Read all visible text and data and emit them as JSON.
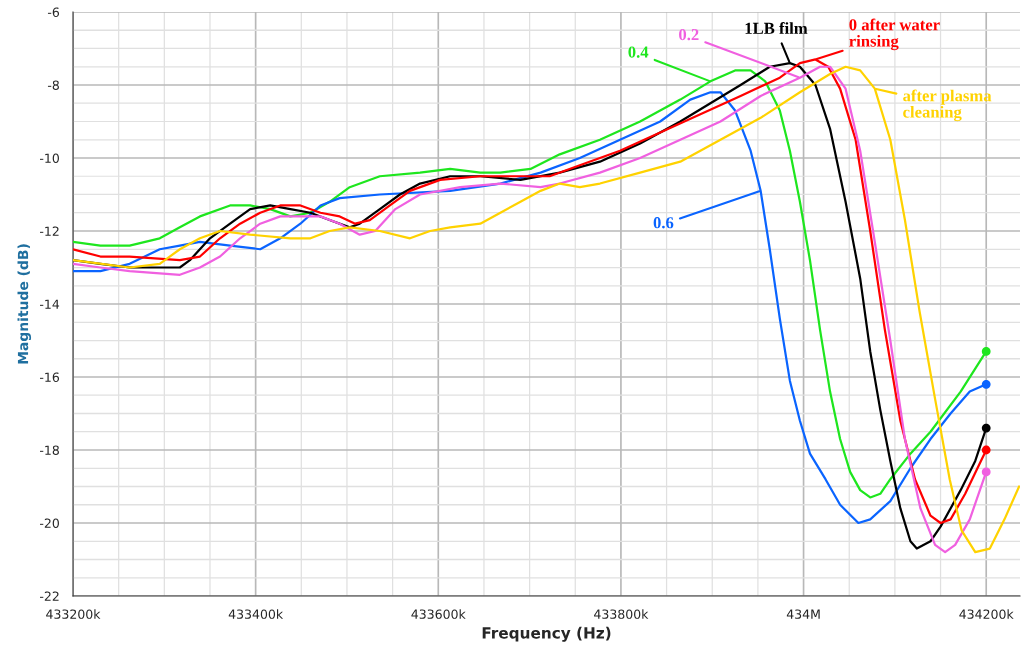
{
  "chart_data": {
    "type": "line",
    "xlabel": "Frequency (Hz)",
    "ylabel": "Magnitude (dB)",
    "xlim": [
      433200000,
      434237000
    ],
    "ylim": [
      -22,
      -6
    ],
    "xticks": [
      {
        "value": 433200000,
        "label": "433200k"
      },
      {
        "value": 433400000,
        "label": "433400k"
      },
      {
        "value": 433600000,
        "label": "433600k"
      },
      {
        "value": 433800000,
        "label": "433800k"
      },
      {
        "value": 434000000,
        "label": "434M"
      },
      {
        "value": 434200000,
        "label": "434200k"
      }
    ],
    "yticks": [
      -22,
      -20,
      -18,
      -16,
      -14,
      -12,
      -10,
      -8,
      -6
    ],
    "grid": true,
    "line_style": "solid",
    "series": [
      {
        "name": "0.4",
        "color": "#1ee61e",
        "x": [
          433200000,
          433230000,
          433262000,
          433295000,
          433317000,
          433339000,
          433372000,
          433394000,
          433416000,
          433438000,
          433460000,
          433481000,
          433503000,
          433536000,
          433580000,
          433613000,
          433646000,
          433668000,
          433701000,
          433733000,
          433777000,
          433821000,
          433865000,
          433898000,
          433925000,
          433942000,
          433958000,
          433974000,
          433985000,
          433996000,
          434007000,
          434018000,
          434029000,
          434040000,
          434051000,
          434062000,
          434073000,
          434084000,
          434095000,
          434117000,
          434139000,
          434172000,
          434200000
        ],
        "values": [
          -12.3,
          -12.4,
          -12.4,
          -12.2,
          -11.9,
          -11.6,
          -11.3,
          -11.3,
          -11.4,
          -11.6,
          -11.5,
          -11.2,
          -10.8,
          -10.5,
          -10.4,
          -10.3,
          -10.4,
          -10.4,
          -10.3,
          -9.9,
          -9.5,
          -9.0,
          -8.4,
          -7.9,
          -7.6,
          -7.6,
          -7.9,
          -8.7,
          -9.8,
          -11.2,
          -12.8,
          -14.7,
          -16.4,
          -17.7,
          -18.6,
          -19.1,
          -19.3,
          -19.2,
          -18.8,
          -18.1,
          -17.5,
          -16.4,
          -15.3
        ]
      },
      {
        "name": "0.6",
        "color": "#0a64ff",
        "x": [
          433200000,
          433230000,
          433262000,
          433295000,
          433317000,
          433339000,
          433372000,
          433405000,
          433427000,
          433449000,
          433471000,
          433492000,
          433536000,
          433613000,
          433668000,
          433712000,
          433755000,
          433799000,
          433843000,
          433876000,
          433898000,
          433909000,
          433925000,
          433942000,
          433953000,
          433963000,
          433974000,
          433985000,
          433996000,
          434007000,
          434024000,
          434040000,
          434060000,
          434073000,
          434095000,
          434117000,
          434139000,
          434161000,
          434182000,
          434200000
        ],
        "values": [
          -13.1,
          -13.1,
          -12.9,
          -12.5,
          -12.4,
          -12.3,
          -12.4,
          -12.5,
          -12.2,
          -11.8,
          -11.3,
          -11.1,
          -11.0,
          -10.9,
          -10.7,
          -10.4,
          -10.0,
          -9.5,
          -9.0,
          -8.4,
          -8.2,
          -8.2,
          -8.7,
          -9.8,
          -10.9,
          -12.5,
          -14.4,
          -16.1,
          -17.2,
          -18.1,
          -18.8,
          -19.5,
          -20.0,
          -19.9,
          -19.4,
          -18.5,
          -17.7,
          -17.0,
          -16.4,
          -16.2
        ]
      },
      {
        "name": "1LB film",
        "color": "#000000",
        "x": [
          433200000,
          433230000,
          433262000,
          433317000,
          433328000,
          433350000,
          433372000,
          433394000,
          433416000,
          433438000,
          433460000,
          433481000,
          433503000,
          433514000,
          433536000,
          433558000,
          433580000,
          433613000,
          433646000,
          433690000,
          433733000,
          433777000,
          433821000,
          433865000,
          433898000,
          433931000,
          433963000,
          433985000,
          433996000,
          434013000,
          434029000,
          434046000,
          434062000,
          434073000,
          434084000,
          434095000,
          434106000,
          434117000,
          434124000,
          434139000,
          434150000,
          434172000,
          434188000,
          434200000
        ],
        "values": [
          -12.8,
          -12.9,
          -13.0,
          -13.0,
          -12.8,
          -12.2,
          -11.8,
          -11.4,
          -11.3,
          -11.4,
          -11.5,
          -11.7,
          -11.9,
          -11.8,
          -11.4,
          -11.0,
          -10.7,
          -10.5,
          -10.5,
          -10.6,
          -10.4,
          -10.1,
          -9.6,
          -9.0,
          -8.5,
          -8.0,
          -7.5,
          -7.4,
          -7.5,
          -8.0,
          -9.2,
          -11.2,
          -13.3,
          -15.3,
          -16.9,
          -18.3,
          -19.6,
          -20.5,
          -20.7,
          -20.5,
          -20.1,
          -19.1,
          -18.3,
          -17.4
        ]
      },
      {
        "name": "0 after water\nrinsing",
        "color": "#ff0000",
        "x": [
          433200000,
          433230000,
          433262000,
          433317000,
          433339000,
          433361000,
          433383000,
          433405000,
          433427000,
          433449000,
          433471000,
          433492000,
          433509000,
          433525000,
          433547000,
          433569000,
          433602000,
          433646000,
          433690000,
          433722000,
          433755000,
          433799000,
          433843000,
          433887000,
          433931000,
          433974000,
          433996000,
          434013000,
          434027000,
          434040000,
          434057000,
          434073000,
          434089000,
          434106000,
          434122000,
          434139000,
          434150000,
          434161000,
          434177000,
          434200000
        ],
        "values": [
          -12.5,
          -12.7,
          -12.7,
          -12.8,
          -12.7,
          -12.2,
          -11.8,
          -11.5,
          -11.3,
          -11.3,
          -11.5,
          -11.6,
          -11.8,
          -11.7,
          -11.3,
          -10.9,
          -10.6,
          -10.5,
          -10.5,
          -10.5,
          -10.2,
          -9.8,
          -9.3,
          -8.8,
          -8.3,
          -7.8,
          -7.4,
          -7.3,
          -7.5,
          -8.1,
          -9.5,
          -12.0,
          -14.7,
          -17.2,
          -18.8,
          -19.8,
          -20.0,
          -19.9,
          -19.2,
          -18.0
        ]
      },
      {
        "name": "0.2",
        "color": "#f060e0",
        "x": [
          433200000,
          433230000,
          433262000,
          433317000,
          433339000,
          433361000,
          433383000,
          433405000,
          433427000,
          433449000,
          433471000,
          433492000,
          433514000,
          433531000,
          433553000,
          433580000,
          433624000,
          433668000,
          433712000,
          433733000,
          433777000,
          433821000,
          433865000,
          433909000,
          433953000,
          433996000,
          434018000,
          434029000,
          434046000,
          434062000,
          434078000,
          434095000,
          434111000,
          434128000,
          434144000,
          434155000,
          434166000,
          434182000,
          434200000
        ],
        "values": [
          -12.9,
          -13.0,
          -13.1,
          -13.2,
          -13.0,
          -12.7,
          -12.2,
          -11.8,
          -11.6,
          -11.6,
          -11.6,
          -11.8,
          -12.1,
          -12.0,
          -11.4,
          -11.0,
          -10.8,
          -10.7,
          -10.8,
          -10.7,
          -10.4,
          -10.0,
          -9.5,
          -9.0,
          -8.3,
          -7.8,
          -7.5,
          -7.5,
          -8.1,
          -9.8,
          -12.3,
          -15.0,
          -17.7,
          -19.6,
          -20.6,
          -20.8,
          -20.6,
          -19.9,
          -18.6
        ]
      },
      {
        "name": "after plasma\ncleaning",
        "color": "#ffd200",
        "x": [
          433200000,
          433262000,
          433295000,
          433317000,
          433339000,
          433361000,
          433394000,
          433438000,
          433460000,
          433481000,
          433503000,
          433536000,
          433569000,
          433591000,
          433613000,
          433646000,
          433668000,
          433690000,
          433712000,
          433733000,
          433755000,
          433777000,
          433821000,
          433865000,
          433909000,
          433953000,
          433996000,
          434029000,
          434046000,
          434062000,
          434078000,
          434095000,
          434111000,
          434127000,
          434144000,
          434160000,
          434173000,
          434188000,
          434204000,
          434220000,
          434236000
        ],
        "values": [
          -12.8,
          -13.0,
          -12.9,
          -12.5,
          -12.2,
          -12.0,
          -12.1,
          -12.2,
          -12.2,
          -12.0,
          -11.9,
          -12.0,
          -12.2,
          -12.0,
          -11.9,
          -11.8,
          -11.5,
          -11.2,
          -10.9,
          -10.7,
          -10.8,
          -10.7,
          -10.4,
          -10.1,
          -9.5,
          -8.9,
          -8.2,
          -7.7,
          -7.5,
          -7.6,
          -8.1,
          -9.5,
          -11.7,
          -14.2,
          -16.6,
          -18.8,
          -20.2,
          -20.8,
          -20.7,
          -19.9,
          -19.0
        ]
      },
      {
        "type": "scatter",
        "marker": "circle",
        "x": [
          434200000,
          434200000,
          434200000,
          434200000,
          434200000
        ],
        "values": [
          -15.3,
          -16.2,
          -17.4,
          -18.0,
          -18.6
        ],
        "colors": [
          "#1ee61e",
          "#0a64ff",
          "#000000",
          "#ff0000",
          "#f060e0"
        ]
      }
    ]
  }
}
